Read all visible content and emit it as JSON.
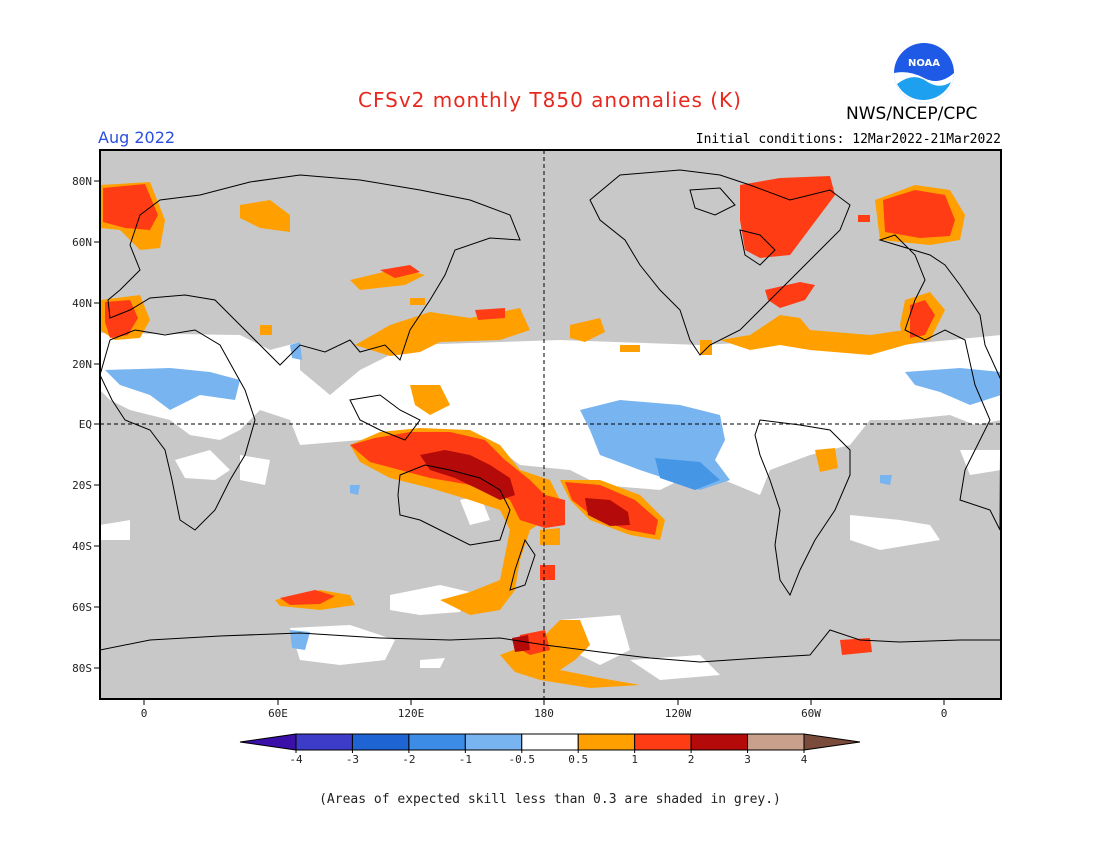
{
  "header": {
    "title": "CFSv2 monthly T850 anomalies (K)",
    "month": "Aug 2022",
    "initial_conditions": "Initial conditions: 12Mar2022-21Mar2022",
    "agency": "NWS/NCEP/CPC",
    "logo_text": "NOAA"
  },
  "map": {
    "lat_labels": [
      "80N",
      "60N",
      "40N",
      "20N",
      "EQ",
      "20S",
      "40S",
      "60S",
      "80S"
    ],
    "lon_labels": [
      "0",
      "60E",
      "120E",
      "180",
      "120W",
      "60W",
      "0"
    ],
    "grey_meaning": "low skill",
    "colors": {
      "grey": "#c8c8c8",
      "white": "#ffffff",
      "lightblue": "#78b4f0",
      "blue": "#4696e6",
      "orange": "#ffa000",
      "red": "#ff3c14",
      "darkred": "#b40a0a"
    }
  },
  "colorbar": {
    "labels": [
      "-4",
      "-3",
      "-2",
      "-1",
      "-0.5",
      "0.5",
      "1",
      "2",
      "3",
      "4"
    ],
    "colors": [
      "#3a10a8",
      "#3c3cc8",
      "#1e64d2",
      "#3c8ce6",
      "#78b4f0",
      "#ffffff",
      "#ffa000",
      "#ff3c14",
      "#b40a0a",
      "#c8a08c",
      "#7a4a3a"
    ]
  },
  "footnote": "(Areas of expected skill less than 0.3 are shaded in grey.)"
}
